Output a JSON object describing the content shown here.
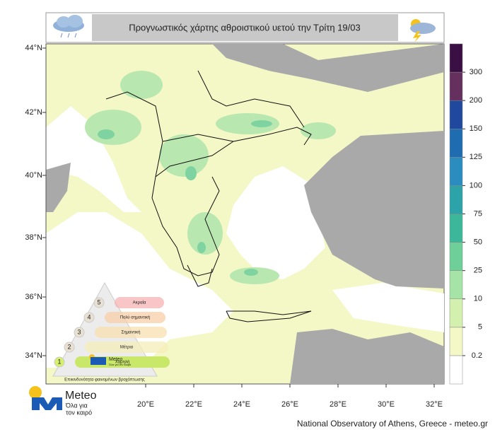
{
  "header": {
    "title": "Προγνωστικός χάρτης αθροιστικού υετού την Τρίτη 19/03"
  },
  "map": {
    "lat_labels": [
      "44°N",
      "42°N",
      "40°N",
      "38°N",
      "36°N",
      "34°N"
    ],
    "lon_labels": [
      "20°E",
      "22°E",
      "24°E",
      "26°E",
      "28°E",
      "30°E",
      "32°E"
    ]
  },
  "colorbar": {
    "levels": [
      0.2,
      5,
      10,
      25,
      50,
      75,
      100,
      125,
      150,
      200,
      300
    ],
    "colors": [
      "#ffffff",
      "#f3f8c6",
      "#d4f0ae",
      "#a6e3a6",
      "#6fcf98",
      "#3cb79a",
      "#2ba3a8",
      "#2b8cc0",
      "#1f6db0",
      "#20489c",
      "#66305e",
      "#3a0f44"
    ]
  },
  "legend": {
    "levels": [
      {
        "number": "5",
        "label": "Ακραία"
      },
      {
        "number": "4",
        "label": "Πολύ σημαντική"
      },
      {
        "number": "3",
        "label": "Σημαντική"
      },
      {
        "number": "2",
        "label": "Μέτρια"
      },
      {
        "number": "1",
        "label": "Χαμηλή"
      }
    ],
    "caption": "Επικινδυνότητα φαινομένων βροχόπτωσης",
    "brand": "Meteo",
    "slogan": "Όλα για τον καιρό"
  },
  "logo": {
    "brand": "Meteo",
    "slogan_line1": "Όλα για",
    "slogan_line2": "τον καιρό"
  },
  "footer": "National Observatory of Athens, Greece - meteo.gr"
}
